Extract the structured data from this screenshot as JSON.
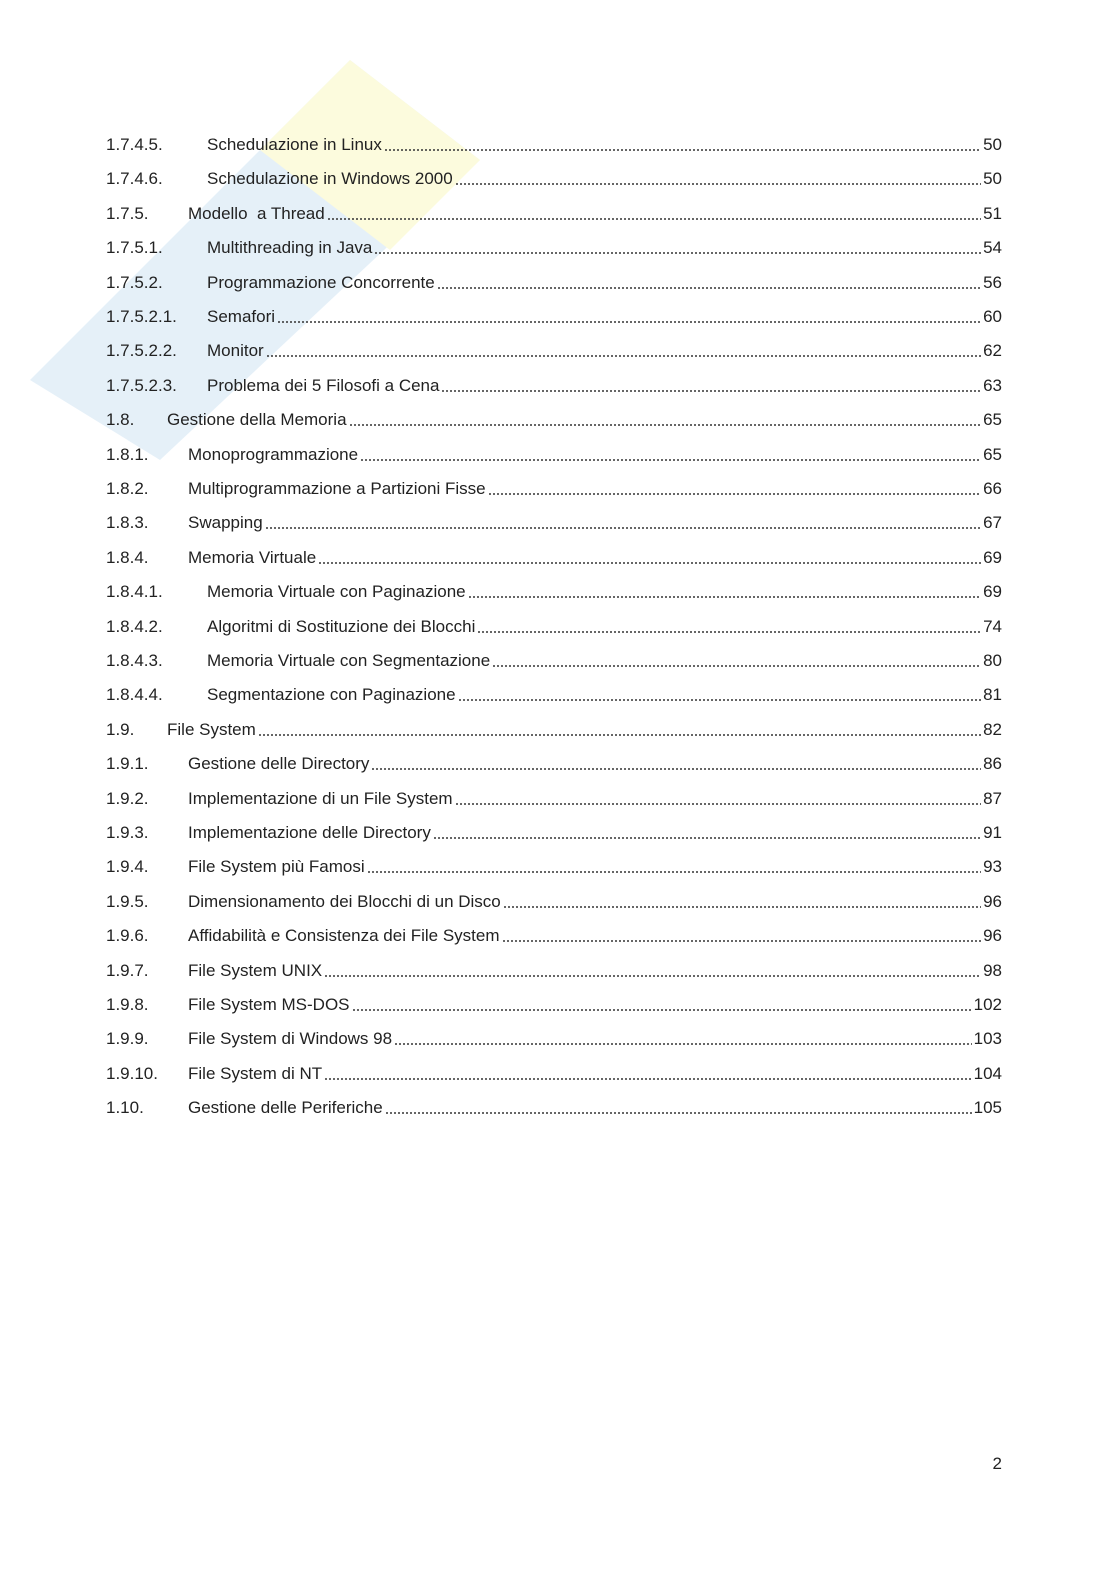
{
  "toc": [
    {
      "number": "1.7.4.5.",
      "title": "Schedulazione in Linux",
      "page": 50
    },
    {
      "number": "1.7.4.6.",
      "title": "Schedulazione in Windows 2000",
      "page": 50
    },
    {
      "number": "1.7.5.",
      "title": "Modello  a Thread",
      "page": 51
    },
    {
      "number": "1.7.5.1.",
      "title": "Multithreading in Java",
      "page": 54
    },
    {
      "number": "1.7.5.2.",
      "title": "Programmazione Concorrente",
      "page": 56
    },
    {
      "number": "1.7.5.2.1.",
      "title": "Semafori",
      "page": 60
    },
    {
      "number": "1.7.5.2.2.",
      "title": "Monitor",
      "page": 62
    },
    {
      "number": "1.7.5.2.3.",
      "title": "Problema dei 5 Filosofi a Cena",
      "page": 63
    },
    {
      "number": "1.8.",
      "title": "Gestione della Memoria",
      "page": 65
    },
    {
      "number": "1.8.1.",
      "title": "Monoprogrammazione",
      "page": 65
    },
    {
      "number": "1.8.2.",
      "title": "Multiprogrammazione a Partizioni Fisse",
      "page": 66
    },
    {
      "number": "1.8.3.",
      "title": "Swapping",
      "page": 67
    },
    {
      "number": "1.8.4.",
      "title": "Memoria Virtuale",
      "page": 69
    },
    {
      "number": "1.8.4.1.",
      "title": "Memoria Virtuale con Paginazione",
      "page": 69
    },
    {
      "number": "1.8.4.2.",
      "title": "Algoritmi di Sostituzione dei Blocchi",
      "page": 74
    },
    {
      "number": "1.8.4.3.",
      "title": "Memoria Virtuale con Segmentazione",
      "page": 80
    },
    {
      "number": "1.8.4.4.",
      "title": "Segmentazione con Paginazione",
      "page": 81
    },
    {
      "number": "1.9.",
      "title": "File System",
      "page": 82
    },
    {
      "number": "1.9.1.",
      "title": "Gestione delle Directory",
      "page": 86
    },
    {
      "number": "1.9.2.",
      "title": "Implementazione di un File System",
      "page": 87
    },
    {
      "number": "1.9.3.",
      "title": "Implementazione delle Directory",
      "page": 91
    },
    {
      "number": "1.9.4.",
      "title": "File System più Famosi",
      "page": 93
    },
    {
      "number": "1.9.5.",
      "title": "Dimensionamento dei Blocchi di un Disco",
      "page": 96
    },
    {
      "number": "1.9.6.",
      "title": "Affidabilità e Consistenza dei File System",
      "page": 96
    },
    {
      "number": "1.9.7.",
      "title": "File System UNIX",
      "page": 98
    },
    {
      "number": "1.9.8.",
      "title": "File System MS-DOS",
      "page": 102
    },
    {
      "number": "1.9.9.",
      "title": "File System di Windows 98",
      "page": 103
    },
    {
      "number": "1.9.10.",
      "title": "File System di NT",
      "page": 104
    },
    {
      "number": "1.10.",
      "title": "Gestione delle Periferiche",
      "page": 105
    }
  ],
  "page_number": 2
}
